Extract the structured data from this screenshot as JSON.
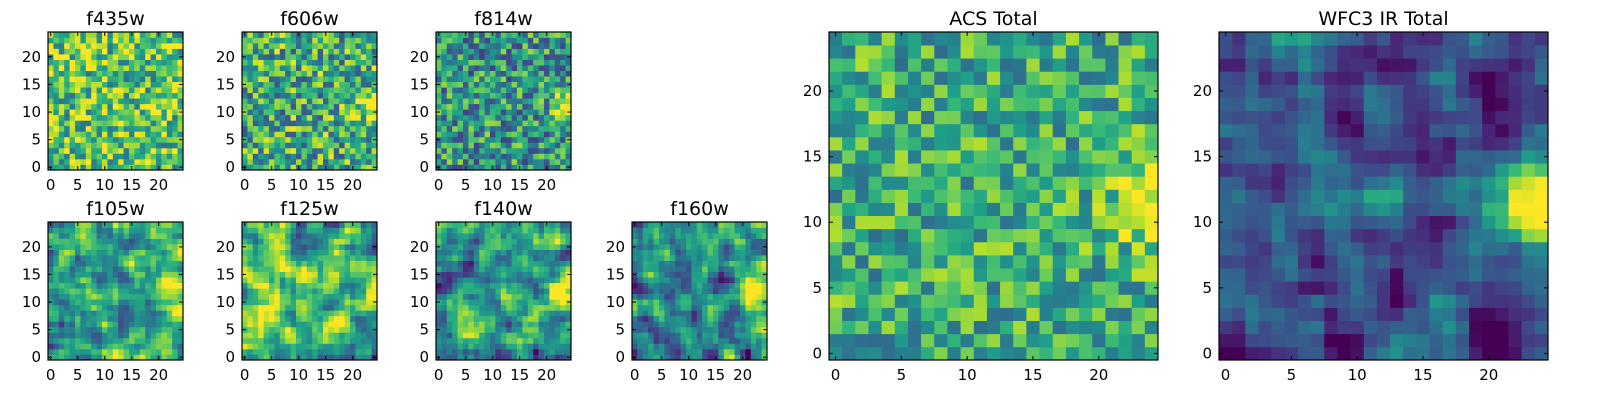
{
  "chart_data": [
    {
      "type": "heatmap",
      "title": "f435w",
      "grid": 25,
      "xticks": [
        0,
        5,
        10,
        15,
        20
      ],
      "yticks": [
        0,
        5,
        10,
        15,
        20
      ],
      "xlim": [
        -0.5,
        24.5
      ],
      "ylim": [
        -0.5,
        24.5
      ],
      "colormap": "viridis",
      "character": "noisy, mostly green-yellow with scattered dark pixels",
      "seed": 11,
      "blobs": [],
      "mean": 0.72,
      "noise": 0.42,
      "smooth": 0
    },
    {
      "type": "heatmap",
      "title": "f606w",
      "grid": 25,
      "xticks": [
        0,
        5,
        10,
        15,
        20
      ],
      "yticks": [
        0,
        5,
        10,
        15,
        20
      ],
      "xlim": [
        -0.5,
        24.5
      ],
      "ylim": [
        -0.5,
        24.5
      ],
      "colormap": "viridis",
      "character": "noisy, faint bright source at right edge",
      "seed": 23,
      "blobs": [
        {
          "x": 23.5,
          "y": 11,
          "amp": 0.5,
          "sigma": 1.8
        }
      ],
      "mean": 0.62,
      "noise": 0.45,
      "smooth": 0
    },
    {
      "type": "heatmap",
      "title": "f814w",
      "grid": 25,
      "xticks": [
        0,
        5,
        10,
        15,
        20
      ],
      "yticks": [
        0,
        5,
        10,
        15,
        20
      ],
      "xlim": [
        -0.5,
        24.5
      ],
      "ylim": [
        -0.5,
        24.5
      ],
      "colormap": "viridis",
      "character": "noisy, bright source at right edge",
      "seed": 37,
      "blobs": [
        {
          "x": 24,
          "y": 11,
          "amp": 0.7,
          "sigma": 1.8
        }
      ],
      "mean": 0.52,
      "noise": 0.42,
      "smooth": 0
    },
    {
      "type": "heatmap",
      "title": "f105w",
      "grid": 25,
      "xticks": [
        0,
        5,
        10,
        15,
        20
      ],
      "yticks": [
        0,
        5,
        10,
        15,
        20
      ],
      "xlim": [
        -0.5,
        24.5
      ],
      "ylim": [
        -0.5,
        24.5
      ],
      "colormap": "viridis",
      "character": "smooth mottled, bright source at right edge",
      "seed": 41,
      "blobs": [
        {
          "x": 24,
          "y": 12,
          "amp": 0.55,
          "sigma": 2.2
        }
      ],
      "mean": 0.58,
      "noise": 0.5,
      "smooth": 1
    },
    {
      "type": "heatmap",
      "title": "f125w",
      "grid": 25,
      "xticks": [
        0,
        5,
        10,
        15,
        20
      ],
      "yticks": [
        0,
        5,
        10,
        15,
        20
      ],
      "xlim": [
        -0.5,
        24.5
      ],
      "ylim": [
        -0.5,
        24.5
      ],
      "colormap": "viridis",
      "character": "smooth mottled, yellow-green, bright right edge",
      "seed": 53,
      "blobs": [
        {
          "x": 24,
          "y": 12,
          "amp": 0.45,
          "sigma": 2.2
        }
      ],
      "mean": 0.68,
      "noise": 0.5,
      "smooth": 1
    },
    {
      "type": "heatmap",
      "title": "f140w",
      "grid": 25,
      "xticks": [
        0,
        5,
        10,
        15,
        20
      ],
      "yticks": [
        0,
        5,
        10,
        15,
        20
      ],
      "xlim": [
        -0.5,
        24.5
      ],
      "ylim": [
        -0.5,
        24.5
      ],
      "colormap": "viridis",
      "character": "smooth mottled, bright source at right edge",
      "seed": 67,
      "blobs": [
        {
          "x": 24,
          "y": 12,
          "amp": 0.6,
          "sigma": 2.4
        }
      ],
      "mean": 0.55,
      "noise": 0.5,
      "smooth": 1
    },
    {
      "type": "heatmap",
      "title": "f160w",
      "grid": 25,
      "xticks": [
        0,
        5,
        10,
        15,
        20
      ],
      "yticks": [
        0,
        5,
        10,
        15,
        20
      ],
      "xlim": [
        -0.5,
        24.5
      ],
      "ylim": [
        -0.5,
        24.5
      ],
      "colormap": "viridis",
      "character": "smooth mottled, bright source at right edge",
      "seed": 79,
      "blobs": [
        {
          "x": 24,
          "y": 12,
          "amp": 0.6,
          "sigma": 2.4
        }
      ],
      "mean": 0.5,
      "noise": 0.5,
      "smooth": 1
    },
    {
      "type": "heatmap",
      "title": "ACS Total",
      "grid": 25,
      "xticks": [
        0,
        5,
        10,
        15,
        20
      ],
      "yticks": [
        0,
        5,
        10,
        15,
        20
      ],
      "xlim": [
        -0.5,
        24.5
      ],
      "ylim": [
        -0.5,
        24.5
      ],
      "colormap": "viridis",
      "character": "noisy pixels, bright source at right edge around y=11",
      "seed": 97,
      "blobs": [
        {
          "x": 24,
          "y": 11,
          "amp": 0.45,
          "sigma": 2
        }
      ],
      "mean": 0.62,
      "noise": 0.34,
      "smooth": 0
    },
    {
      "type": "heatmap",
      "title": "WFC3 IR Total",
      "grid": 25,
      "xticks": [
        0,
        5,
        10,
        15,
        20
      ],
      "yticks": [
        0,
        5,
        10,
        15,
        20
      ],
      "xlim": [
        -0.5,
        24.5
      ],
      "ylim": [
        -0.5,
        24.5
      ],
      "colormap": "viridis",
      "character": "smooth, mostly dark blue, bright source at right edge, secondary blob near (12,12)",
      "seed": 131,
      "blobs": [
        {
          "x": 24,
          "y": 11,
          "amp": 0.75,
          "sigma": 3
        },
        {
          "x": 12,
          "y": 12,
          "amp": 0.35,
          "sigma": 1.6
        }
      ],
      "mean": 0.22,
      "noise": 0.35,
      "smooth": 1
    }
  ]
}
